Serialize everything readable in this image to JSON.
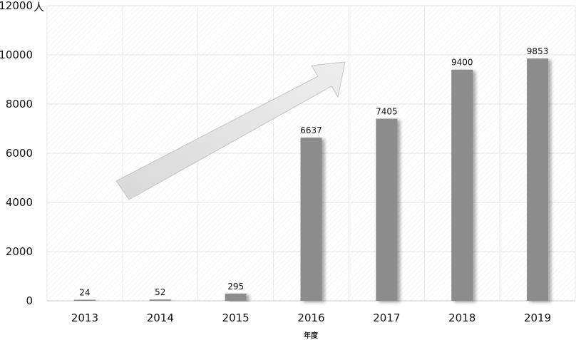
{
  "chart_data": {
    "type": "bar",
    "categories": [
      "2013",
      "2014",
      "2015",
      "2016",
      "2017",
      "2018",
      "2019"
    ],
    "values": [
      24,
      52,
      295,
      6637,
      7405,
      9400,
      9853
    ],
    "data_labels": [
      "24",
      "52",
      "295",
      "6637",
      "7405",
      "9400",
      "9853"
    ],
    "title": "",
    "xlabel": "年度",
    "ylabel": "",
    "y_unit": "人",
    "ylim": [
      0,
      12000
    ],
    "y_ticks": [
      0,
      2000,
      4000,
      6000,
      8000,
      10000,
      12000
    ],
    "y_tick_labels": [
      "0",
      "2000",
      "4000",
      "6000",
      "8000",
      "10000",
      "12000"
    ],
    "grid": true,
    "legend": "none",
    "bar_color": "#8c8c8c",
    "annotation": "upward-trend-arrow"
  }
}
